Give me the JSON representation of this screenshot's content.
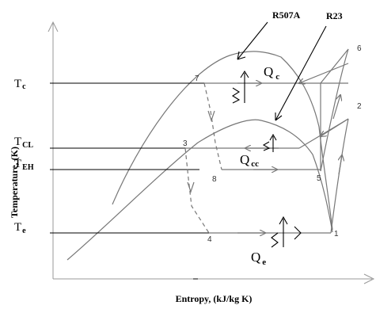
{
  "refrigerants": {
    "high": "R507A",
    "low": "R23"
  },
  "levels": {
    "tc": {
      "main": "T",
      "sub": "c"
    },
    "tcl": {
      "main": "T",
      "sub": "CL"
    },
    "teh": {
      "main": "T",
      "sub": "EH"
    },
    "te": {
      "main": "T",
      "sub": "e"
    }
  },
  "heats": {
    "qc": {
      "main": "Q",
      "sub": "c"
    },
    "qcc": {
      "main": "Q",
      "sub": "cc"
    },
    "qe": {
      "main": "Q",
      "sub": "e"
    }
  },
  "points": [
    "1",
    "2",
    "3",
    "4",
    "5",
    "6",
    "7",
    "8"
  ],
  "axes": {
    "x_label": "Entropy, (kJ/kg K)",
    "y_label": "Temperature, (K)"
  }
}
